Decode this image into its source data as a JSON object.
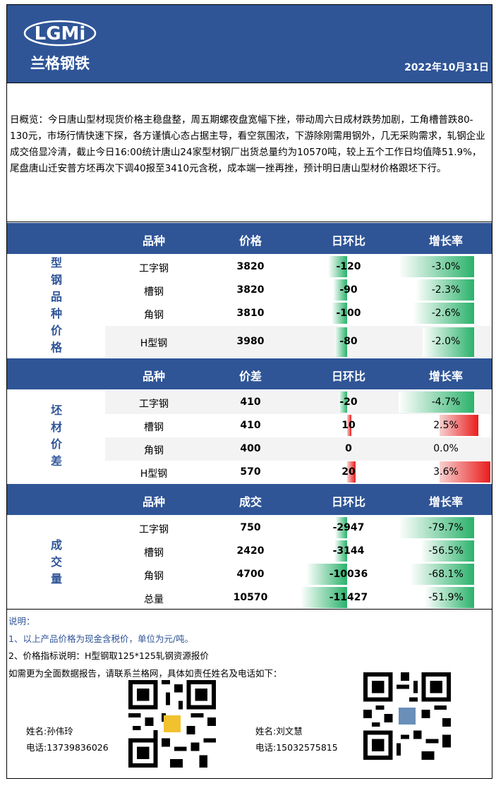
{
  "header": {
    "logo_text": "LGMi",
    "logo_sub": "兰格钢铁",
    "date": "2022年10月31日"
  },
  "summary": "日概览：今日唐山型材现货价格主稳盘整，周五期螺夜盘宽幅下挫，带动周六日成材跌势加剧，工角槽普跌80-130元，市场行情快速下探，各方谨慎心态占据主导，看空氛围浓，下游除刚需用钢外，几无采购需求，轧钢企业成交倍显冷清，截止今日16:00统计唐山24家型材钢厂出货总量约为10570吨，较上五个工作日均值降51.9%，尾盘唐山迁安普方坯再次下调40报至3410元含税，成本端一挫再挫，预计明日唐山型材价格跟坯下行。",
  "sections": [
    {
      "name": "型钢品种价格",
      "headers": [
        "品种",
        "价格",
        "日环比",
        "增长率"
      ],
      "rows": [
        {
          "item": "工字钢",
          "value": "3820",
          "change": "-120",
          "rate": "-3.0%",
          "change_num": -120,
          "rate_num": -3.0
        },
        {
          "item": "槽钢",
          "value": "3820",
          "change": "-90",
          "rate": "-2.3%",
          "change_num": -90,
          "rate_num": -2.3
        },
        {
          "item": "角钢",
          "value": "3810",
          "change": "-100",
          "rate": "-2.6%",
          "change_num": -100,
          "rate_num": -2.6
        },
        {
          "item": "H型钢",
          "value": "3980",
          "change": "-80",
          "rate": "-2.0%",
          "change_num": -80,
          "rate_num": -2.0
        }
      ]
    },
    {
      "name": "坯材价差",
      "headers": [
        "品种",
        "价差",
        "日环比",
        "增长率"
      ],
      "rows": [
        {
          "item": "工字钢",
          "value": "410",
          "change": "-20",
          "rate": "-4.7%",
          "change_num": -20,
          "rate_num": -4.7
        },
        {
          "item": "槽钢",
          "value": "410",
          "change": "10",
          "rate": "2.5%",
          "change_num": 10,
          "rate_num": 2.5
        },
        {
          "item": "角钢",
          "value": "400",
          "change": "0",
          "rate": "0.0%",
          "change_num": 0,
          "rate_num": 0.0
        },
        {
          "item": "H型钢",
          "value": "570",
          "change": "20",
          "rate": "3.6%",
          "change_num": 20,
          "rate_num": 3.6
        }
      ]
    },
    {
      "name": "成交量",
      "headers": [
        "品种",
        "成交",
        "日环比",
        "增长率"
      ],
      "rows": [
        {
          "item": "工字钢",
          "value": "750",
          "change": "-2947",
          "rate": "-79.7%",
          "change_num": -2947,
          "rate_num": -79.7
        },
        {
          "item": "槽钢",
          "value": "2420",
          "change": "-3144",
          "rate": "-56.5%",
          "change_num": -3144,
          "rate_num": -56.5
        },
        {
          "item": "角钢",
          "value": "4700",
          "change": "-10036",
          "rate": "-68.1%",
          "change_num": -10036,
          "rate_num": -68.1
        },
        {
          "item": "总量",
          "value": "10570",
          "change": "-11427",
          "rate": "-51.9%",
          "change_num": -11427,
          "rate_num": -51.9
        }
      ]
    }
  ],
  "notes": {
    "title": "说明：",
    "lines": [
      "1、以上产品价格为现金含税价，单位为元/吨。",
      "2、价格指标说明：H型钢取125*125轧钢资源报价",
      "如需更为全面数据报告，请联系兰格网，具体如责任姓名及电话如下："
    ]
  },
  "contacts": [
    {
      "name": "姓名:孙伟玲",
      "phone": "电话:13739836026"
    },
    {
      "name": "姓名:刘文慧",
      "phone": "电话:15032575815"
    }
  ],
  "colors": {
    "brand": "#2f5597",
    "up": "#ea1c1c",
    "down": "#2bb26b"
  }
}
